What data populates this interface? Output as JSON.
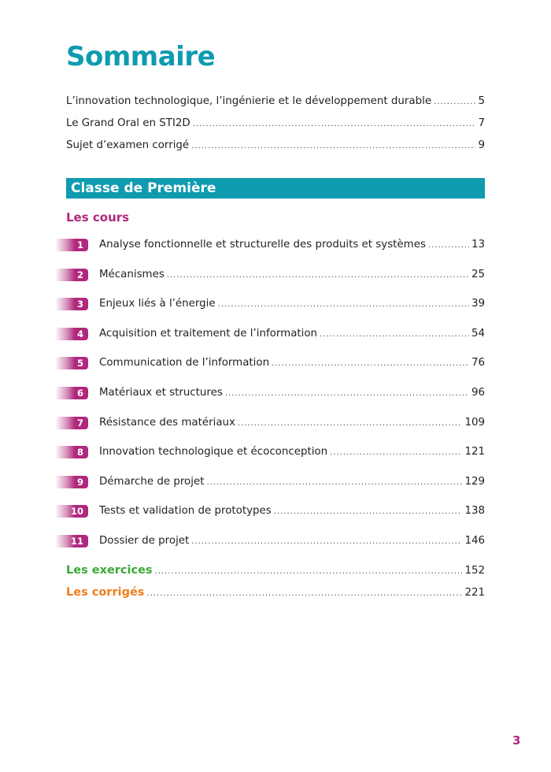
{
  "title": "Sommaire",
  "intro": [
    {
      "label": "L’innovation technologique, l’ingénierie et le développement durable",
      "page": "5"
    },
    {
      "label": "Le Grand Oral en STI2D",
      "page": "7"
    },
    {
      "label": "Sujet d’examen corrigé",
      "page": "9"
    }
  ],
  "section": {
    "title": "Classe de Première",
    "subtitle": "Les cours"
  },
  "chapters": [
    {
      "num": "1",
      "label": "Analyse fonctionnelle et structurelle des produits et systèmes",
      "page": "13"
    },
    {
      "num": "2",
      "label": "Mécanismes",
      "page": "25"
    },
    {
      "num": "3",
      "label": "Enjeux liés à l’énergie",
      "page": "39"
    },
    {
      "num": "4",
      "label": "Acquisition et traitement de l’information",
      "page": "54"
    },
    {
      "num": "5",
      "label": "Communication de l’information",
      "page": "76"
    },
    {
      "num": "6",
      "label": "Matériaux et structures",
      "page": "96"
    },
    {
      "num": "7",
      "label": "Résistance des matériaux",
      "page": "109"
    },
    {
      "num": "8",
      "label": "Innovation technologique et écoconception",
      "page": "121"
    },
    {
      "num": "9",
      "label": "Démarche de projet",
      "page": "129"
    },
    {
      "num": "10",
      "label": "Tests et validation de prototypes",
      "page": "138"
    },
    {
      "num": "11",
      "label": "Dossier de projet",
      "page": "146"
    }
  ],
  "exercices": {
    "label": "Les exercices",
    "page": "152"
  },
  "corriges": {
    "label": "Les corrigés",
    "page": "221"
  },
  "page_number": "3",
  "colors": {
    "teal": "#0e9bb0",
    "magenta": "#b0287c",
    "green": "#3aa935",
    "orange": "#f07d1a"
  }
}
